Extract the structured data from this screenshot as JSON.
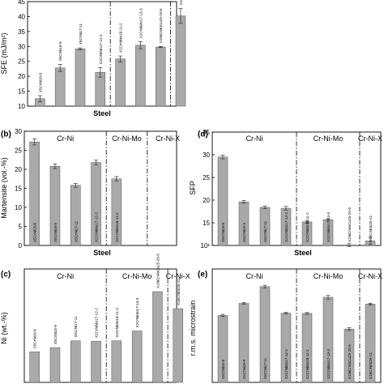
{
  "chart_data": [
    {
      "panel": "a",
      "type": "bar",
      "panel_label": "",
      "xlabel": "Steel",
      "ylabel": "SFE (mJ/m²)",
      "ylim": [
        10,
        45
      ],
      "yticks": [
        10,
        15,
        20,
        25,
        30,
        35,
        40,
        45
      ],
      "categories": [
        "X5CrNi18-8",
        "X5CrNi18-9",
        "X5CrNi17-11",
        "X2CrNiMo17-12-2",
        "X2CrNiMo18-11-2",
        "X2CrNiMo17-13-3",
        "X1NiCrMoCu25-20-5",
        "X15CrNiSi25-21"
      ],
      "values": [
        12.5,
        22.8,
        29.2,
        21.3,
        25.8,
        30.4,
        29.8,
        40.2
      ],
      "errors": [
        1.0,
        1.2,
        0.3,
        1.6,
        1.0,
        1.2,
        0.2,
        2.5
      ],
      "separators_after": [
        3,
        6
      ],
      "group_labels": []
    },
    {
      "panel": "b",
      "type": "bar",
      "panel_label": "(b)",
      "xlabel": "Steel",
      "ylabel": "Martensite (vol.-%)",
      "ylim": [
        0,
        30
      ],
      "yticks": [
        0,
        5,
        10,
        15,
        20,
        25,
        30
      ],
      "categories": [
        "X5CrNi18-8",
        "X5CrNi18-9",
        "X5CrNi17-11",
        "X2CrNiMo17-12-2",
        "X2CrNiMo18-11-2",
        "",
        "",
        ""
      ],
      "values": [
        27.2,
        20.8,
        15.8,
        21.8,
        17.5,
        0,
        0,
        0
      ],
      "errors": [
        0.8,
        0.6,
        0.5,
        0.6,
        0.6,
        0,
        0,
        0
      ],
      "separators_after": [
        3,
        5
      ],
      "group_labels": [
        "Cr-Ni",
        "Cr-Ni-Mo",
        "Cr-Ni-X"
      ]
    },
    {
      "panel": "c",
      "type": "bar",
      "panel_label": "(c)",
      "xlabel": "",
      "ylabel": "Ni (wt.-%)",
      "ylim": [
        0,
        30
      ],
      "yticks": [],
      "categories": [
        "X5CrNi18-8",
        "X5CrNi18-9",
        "X5CrNi17-11",
        "X2CrNiMo17-12-2",
        "X2CrNiMo18-11-2",
        "X2CrNiMo17-13-3",
        "X1NiCrMoCu25-20-5",
        "X15CrNiSi25-21"
      ],
      "values": [
        8.1,
        9.2,
        11.0,
        10.9,
        11.0,
        13.6,
        24.0,
        19.5
      ],
      "errors": [
        0,
        0,
        0,
        0,
        0,
        0,
        0,
        0
      ],
      "separators_after": [
        3,
        6
      ],
      "group_labels": [
        "Cr-Ni",
        "Cr-Ni-Mo",
        "Cr-Ni-X"
      ]
    },
    {
      "panel": "d",
      "type": "bar",
      "panel_label": "(d)",
      "xlabel": "Steel",
      "ylabel": "SFP",
      "ylim": [
        10,
        35
      ],
      "yticks": [
        10,
        15,
        20,
        25,
        30,
        35
      ],
      "ytick_labels": [
        "10¹",
        "15",
        "20",
        "25",
        "30",
        "35"
      ],
      "categories": [
        "X5CrNi18-8",
        "X5CrNi18-9",
        "X5CrNi17-11",
        "X2CrNiMo17-12-2",
        "X2CrNiMo18-11-2",
        "X2CrNiMo17-13-3",
        "X1NiCrMoCu25-20-5",
        "X15CrNiSi25-21"
      ],
      "values": [
        29.5,
        19.6,
        18.4,
        18.2,
        15.2,
        15.7,
        10.1,
        11.0
      ],
      "errors": [
        0.4,
        0.3,
        0.3,
        0.4,
        0.3,
        0.2,
        0.3,
        0.8
      ],
      "separators_after": [
        3,
        6
      ],
      "group_labels": [
        "Cr-Ni",
        "Cr-Ni-Mo",
        "Cr-Ni-X"
      ]
    },
    {
      "panel": "e",
      "type": "bar",
      "panel_label": "(e)",
      "xlabel": "",
      "ylabel": "r.m.s. microstrain",
      "ylim": [
        0,
        50
      ],
      "yticks": [],
      "categories": [
        "X5CrNi18-8",
        "X5CrNi18-9",
        "X5CrNi17-11",
        "X2CrNiMo17-12-2",
        "X2CrNiMo18-11-2",
        "X2CrNiMo17-13-3",
        "X1NiCrMoCu25-20-5",
        "X15CrNiSi25-21"
      ],
      "values": [
        29.5,
        34.8,
        42.2,
        30.5,
        30.4,
        37.5,
        23.5,
        34.5
      ],
      "errors": [
        0.5,
        0.4,
        0.6,
        0.4,
        0.4,
        0.8,
        0.6,
        0.4
      ],
      "separators_after": [
        3,
        6
      ],
      "group_labels": [
        "Cr-Ni",
        "Cr-Ni-Mo",
        "Cr-Ni-X"
      ]
    }
  ]
}
